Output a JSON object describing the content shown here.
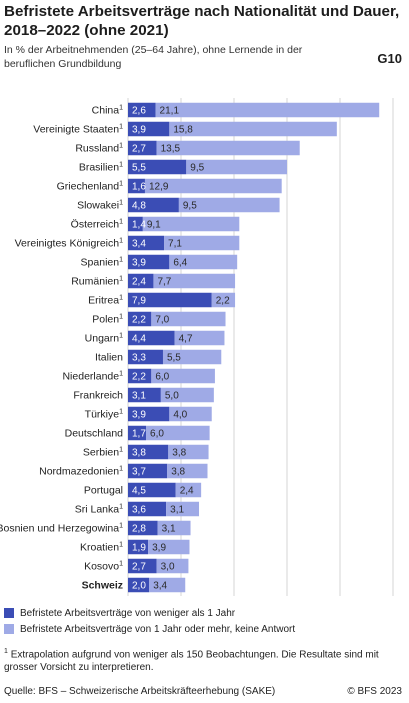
{
  "header": {
    "title": "Befristete Arbeitsverträge nach Nationalität und Dauer, 2018–2022 (ohne 2021)",
    "subtitle": "In % der Arbeitnehmenden (25–64 Jahre), ohne Lernende in der beruflichen Grundbildung",
    "code": "G10"
  },
  "colors": {
    "series1": "#3b4db5",
    "series2": "#9faae6",
    "grid": "#d6d6d6"
  },
  "chart_data": {
    "type": "bar",
    "orientation": "horizontal",
    "stacked": true,
    "title": "Befristete Arbeitsverträge nach Nationalität und Dauer, 2018–2022 (ohne 2021)",
    "xlabel": "",
    "ylabel": "",
    "xlim": [
      0,
      25
    ],
    "x_ticks": [
      "0%",
      "5%",
      "10%",
      "15%",
      "20%",
      "25%"
    ],
    "x_tick_values": [
      0,
      5,
      10,
      15,
      20,
      25
    ],
    "grid": true,
    "legend_position": "bottom",
    "categories": [
      "China",
      "Vereinigte Staaten",
      "Russland",
      "Brasilien",
      "Griechenland",
      "Slowakei",
      "Österreich",
      "Vereinigtes Königreich",
      "Spanien",
      "Rumänien",
      "Eritrea",
      "Polen",
      "Ungarn",
      "Italien",
      "Niederlande",
      "Frankreich",
      "Türkiye",
      "Deutschland",
      "Serbien",
      "Nordmazedonien",
      "Portugal",
      "Sri Lanka",
      "Bosnien und Herzegowina",
      "Kroatien",
      "Kosovo",
      "Schweiz"
    ],
    "footnote_flags": [
      true,
      true,
      true,
      true,
      true,
      true,
      true,
      true,
      true,
      true,
      true,
      true,
      true,
      false,
      true,
      false,
      true,
      false,
      true,
      true,
      false,
      true,
      true,
      true,
      true,
      false
    ],
    "highlight": "Schweiz",
    "series": [
      {
        "name": "Befristete Arbeitsverträge von weniger als 1 Jahr",
        "values": [
          2.6,
          3.9,
          2.7,
          5.5,
          1.6,
          4.8,
          1.4,
          3.4,
          3.9,
          2.4,
          7.9,
          2.2,
          4.4,
          3.3,
          2.2,
          3.1,
          3.9,
          1.7,
          3.8,
          3.7,
          4.5,
          3.6,
          2.8,
          1.9,
          2.7,
          2.0
        ],
        "labels": [
          "2,6",
          "3,9",
          "2,7",
          "5,5",
          "1,6",
          "4,8",
          "1,4",
          "3,4",
          "3,9",
          "2,4",
          "7,9",
          "2,2",
          "4,4",
          "3,3",
          "2,2",
          "3,1",
          "3,9",
          "1,7",
          "3,8",
          "3,7",
          "4,5",
          "3,6",
          "2,8",
          "1,9",
          "2,7",
          "2,0"
        ]
      },
      {
        "name": "Befristete Arbeitsverträge von 1 Jahr oder mehr, keine Antwort",
        "values": [
          21.1,
          15.8,
          13.5,
          9.5,
          12.9,
          9.5,
          9.1,
          7.1,
          6.4,
          7.7,
          2.2,
          7.0,
          4.7,
          5.5,
          6.0,
          5.0,
          4.0,
          6.0,
          3.8,
          3.8,
          2.4,
          3.1,
          3.1,
          3.9,
          3.0,
          3.4
        ],
        "labels": [
          "21,1",
          "15,8",
          "13,5",
          "9,5",
          "12,9",
          "9,5",
          "9,1",
          "7,1",
          "6,4",
          "7,7",
          "2,2",
          "7,0",
          "4,7",
          "5,5",
          "6,0",
          "5,0",
          "4,0",
          "6,0",
          "3,8",
          "3,8",
          "2,4",
          "3,1",
          "3,1",
          "3,9",
          "3,0",
          "3,4"
        ]
      }
    ]
  },
  "footnote": {
    "marker": "1",
    "text": "Extrapolation aufgrund von weniger als 150 Beobachtungen. Die Resultate sind mit grosser Vorsicht zu interpretieren."
  },
  "source": "Quelle: BFS – Schweizerische Arbeitskräfteerhebung (SAKE)",
  "copyright": "© BFS 2023"
}
